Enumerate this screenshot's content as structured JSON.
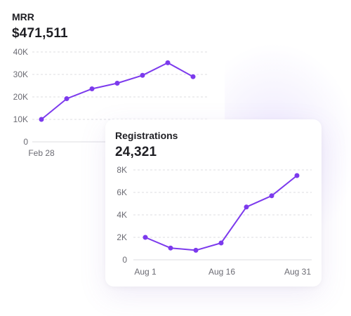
{
  "colors": {
    "line": "#7c3aed",
    "grid": "#dcdce2",
    "text": "#1f1f24",
    "muted": "#6b6b73"
  },
  "mrr_card": {
    "title": "MRR",
    "value": "$471,511"
  },
  "registrations_card": {
    "title": "Registrations",
    "value": "24,321"
  },
  "chart_data": [
    {
      "type": "line",
      "title": "MRR",
      "x_tick_labels": [
        "Feb 28"
      ],
      "y_ticks": [
        0,
        10000,
        20000,
        30000,
        40000
      ],
      "y_tick_labels": [
        "0",
        "10K",
        "20K",
        "30K",
        "40K"
      ],
      "ylim": [
        0,
        40000
      ],
      "grid": true,
      "series": [
        {
          "values": [
            10000,
            19200,
            23600,
            26100,
            29600,
            35200,
            29000
          ]
        }
      ]
    },
    {
      "type": "line",
      "title": "Registrations",
      "x_tick_labels": [
        "Aug 1",
        "Aug 16",
        "Aug 31"
      ],
      "y_ticks": [
        0,
        2000,
        4000,
        6000,
        8000
      ],
      "y_tick_labels": [
        "0",
        "2K",
        "4K",
        "6K",
        "8K"
      ],
      "ylim": [
        0,
        8000
      ],
      "grid": true,
      "series": [
        {
          "values": [
            2000,
            1050,
            850,
            1500,
            4700,
            5700,
            7500
          ]
        }
      ]
    }
  ]
}
